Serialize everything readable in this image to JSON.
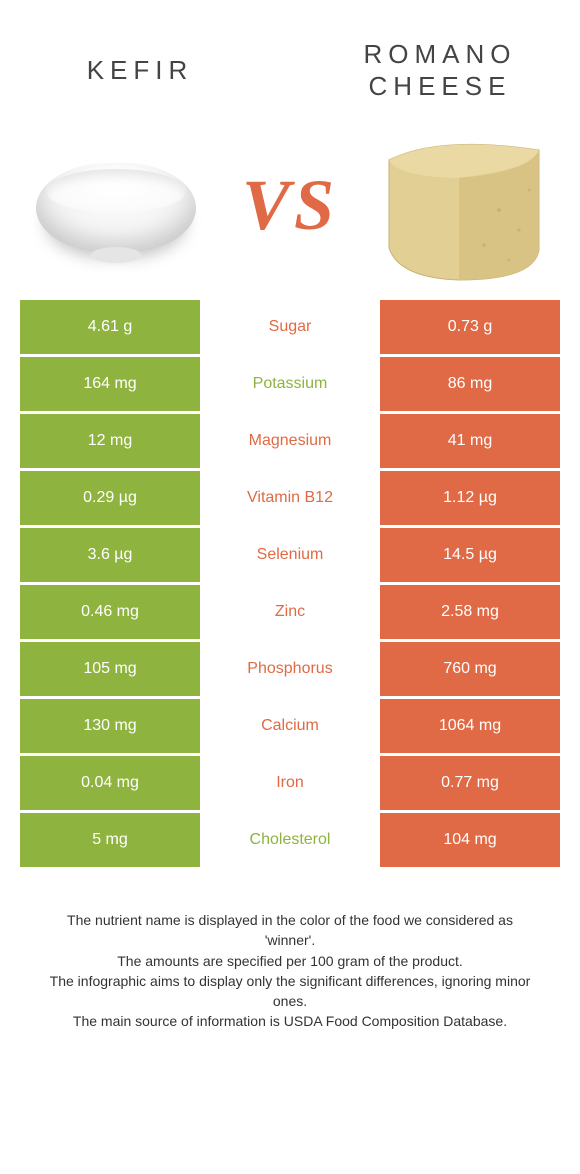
{
  "colors": {
    "left": "#8fb33f",
    "right": "#e06a45",
    "vs": "#e06a45",
    "title": "#444444",
    "footer": "#333333",
    "background": "#ffffff"
  },
  "titles": {
    "left": "KEFIR",
    "right": "ROMANO CHEESE"
  },
  "vs_text": "VS",
  "rows": [
    {
      "label": "Sugar",
      "left": "4.61 g",
      "right": "0.73 g",
      "winner": "right"
    },
    {
      "label": "Potassium",
      "left": "164 mg",
      "right": "86 mg",
      "winner": "left"
    },
    {
      "label": "Magnesium",
      "left": "12 mg",
      "right": "41 mg",
      "winner": "right"
    },
    {
      "label": "Vitamin B12",
      "left": "0.29 µg",
      "right": "1.12 µg",
      "winner": "right"
    },
    {
      "label": "Selenium",
      "left": "3.6 µg",
      "right": "14.5 µg",
      "winner": "right"
    },
    {
      "label": "Zinc",
      "left": "0.46 mg",
      "right": "2.58 mg",
      "winner": "right"
    },
    {
      "label": "Phosphorus",
      "left": "105 mg",
      "right": "760 mg",
      "winner": "right"
    },
    {
      "label": "Calcium",
      "left": "130 mg",
      "right": "1064 mg",
      "winner": "right"
    },
    {
      "label": "Iron",
      "left": "0.04 mg",
      "right": "0.77 mg",
      "winner": "right"
    },
    {
      "label": "Cholesterol",
      "left": "5 mg",
      "right": "104 mg",
      "winner": "left"
    }
  ],
  "footer": [
    "The nutrient name is displayed in the color of the food we considered as 'winner'.",
    "The amounts are specified per 100 gram of the product.",
    "The infographic aims to display only the significant differences, ignoring minor ones.",
    "The main source of information is USDA Food Composition Database."
  ]
}
